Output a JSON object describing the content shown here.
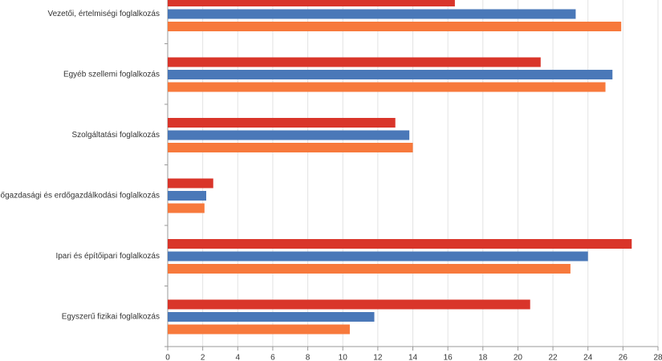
{
  "chart_data": {
    "type": "hbar",
    "categories": [
      "Vezetői, értelmiségi foglalkozás",
      "Egyéb szellemi foglalkozás",
      "Szolgáltatási foglalkozás",
      "Mezőgazdasági és erdőgazdálkodási foglalkozás",
      "Ipari és építőipari foglalkozás",
      "Egyszerű fizikai foglalkozás"
    ],
    "series": [
      {
        "color": "#d9352a",
        "values": [
          16.4,
          21.3,
          13.0,
          2.6,
          26.5,
          20.7
        ]
      },
      {
        "color": "#4a78b8",
        "values": [
          23.3,
          25.4,
          13.8,
          2.2,
          24.0,
          11.8
        ]
      },
      {
        "color": "#f7793c",
        "values": [
          25.9,
          25.0,
          14.0,
          2.1,
          23.0,
          10.4
        ]
      }
    ],
    "xlim": [
      0,
      28
    ],
    "xticks": [
      0,
      2,
      4,
      6,
      8,
      10,
      12,
      14,
      16,
      18,
      20,
      22,
      24,
      26,
      28
    ],
    "grid": true
  }
}
